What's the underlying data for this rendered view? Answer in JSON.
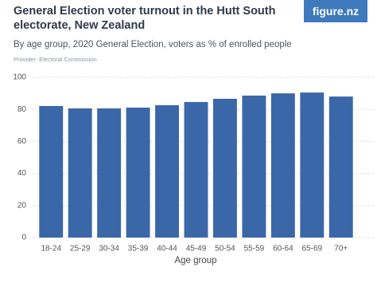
{
  "logo": "figure.nz",
  "provider": "Provider: Electoral Commission",
  "chart_data": {
    "type": "bar",
    "title": "General Election voter turnout in the Hutt South electorate, New Zealand",
    "subtitle": "By age group, 2020 General Election, voters as % of enrolled people",
    "x_label": "Age group",
    "categories": [
      "18-24",
      "25-29",
      "30-34",
      "35-39",
      "40-44",
      "45-49",
      "50-54",
      "55-59",
      "60-64",
      "65-69",
      "70+"
    ],
    "values": [
      82.1,
      80.6,
      80.6,
      81.1,
      82.6,
      84.6,
      86.6,
      88.6,
      90.0,
      90.5,
      88.0
    ],
    "color": "#3a67a8",
    "ylim": [
      0,
      100
    ],
    "yticks": [
      0,
      20,
      40,
      60,
      80,
      100
    ],
    "grid": true
  }
}
